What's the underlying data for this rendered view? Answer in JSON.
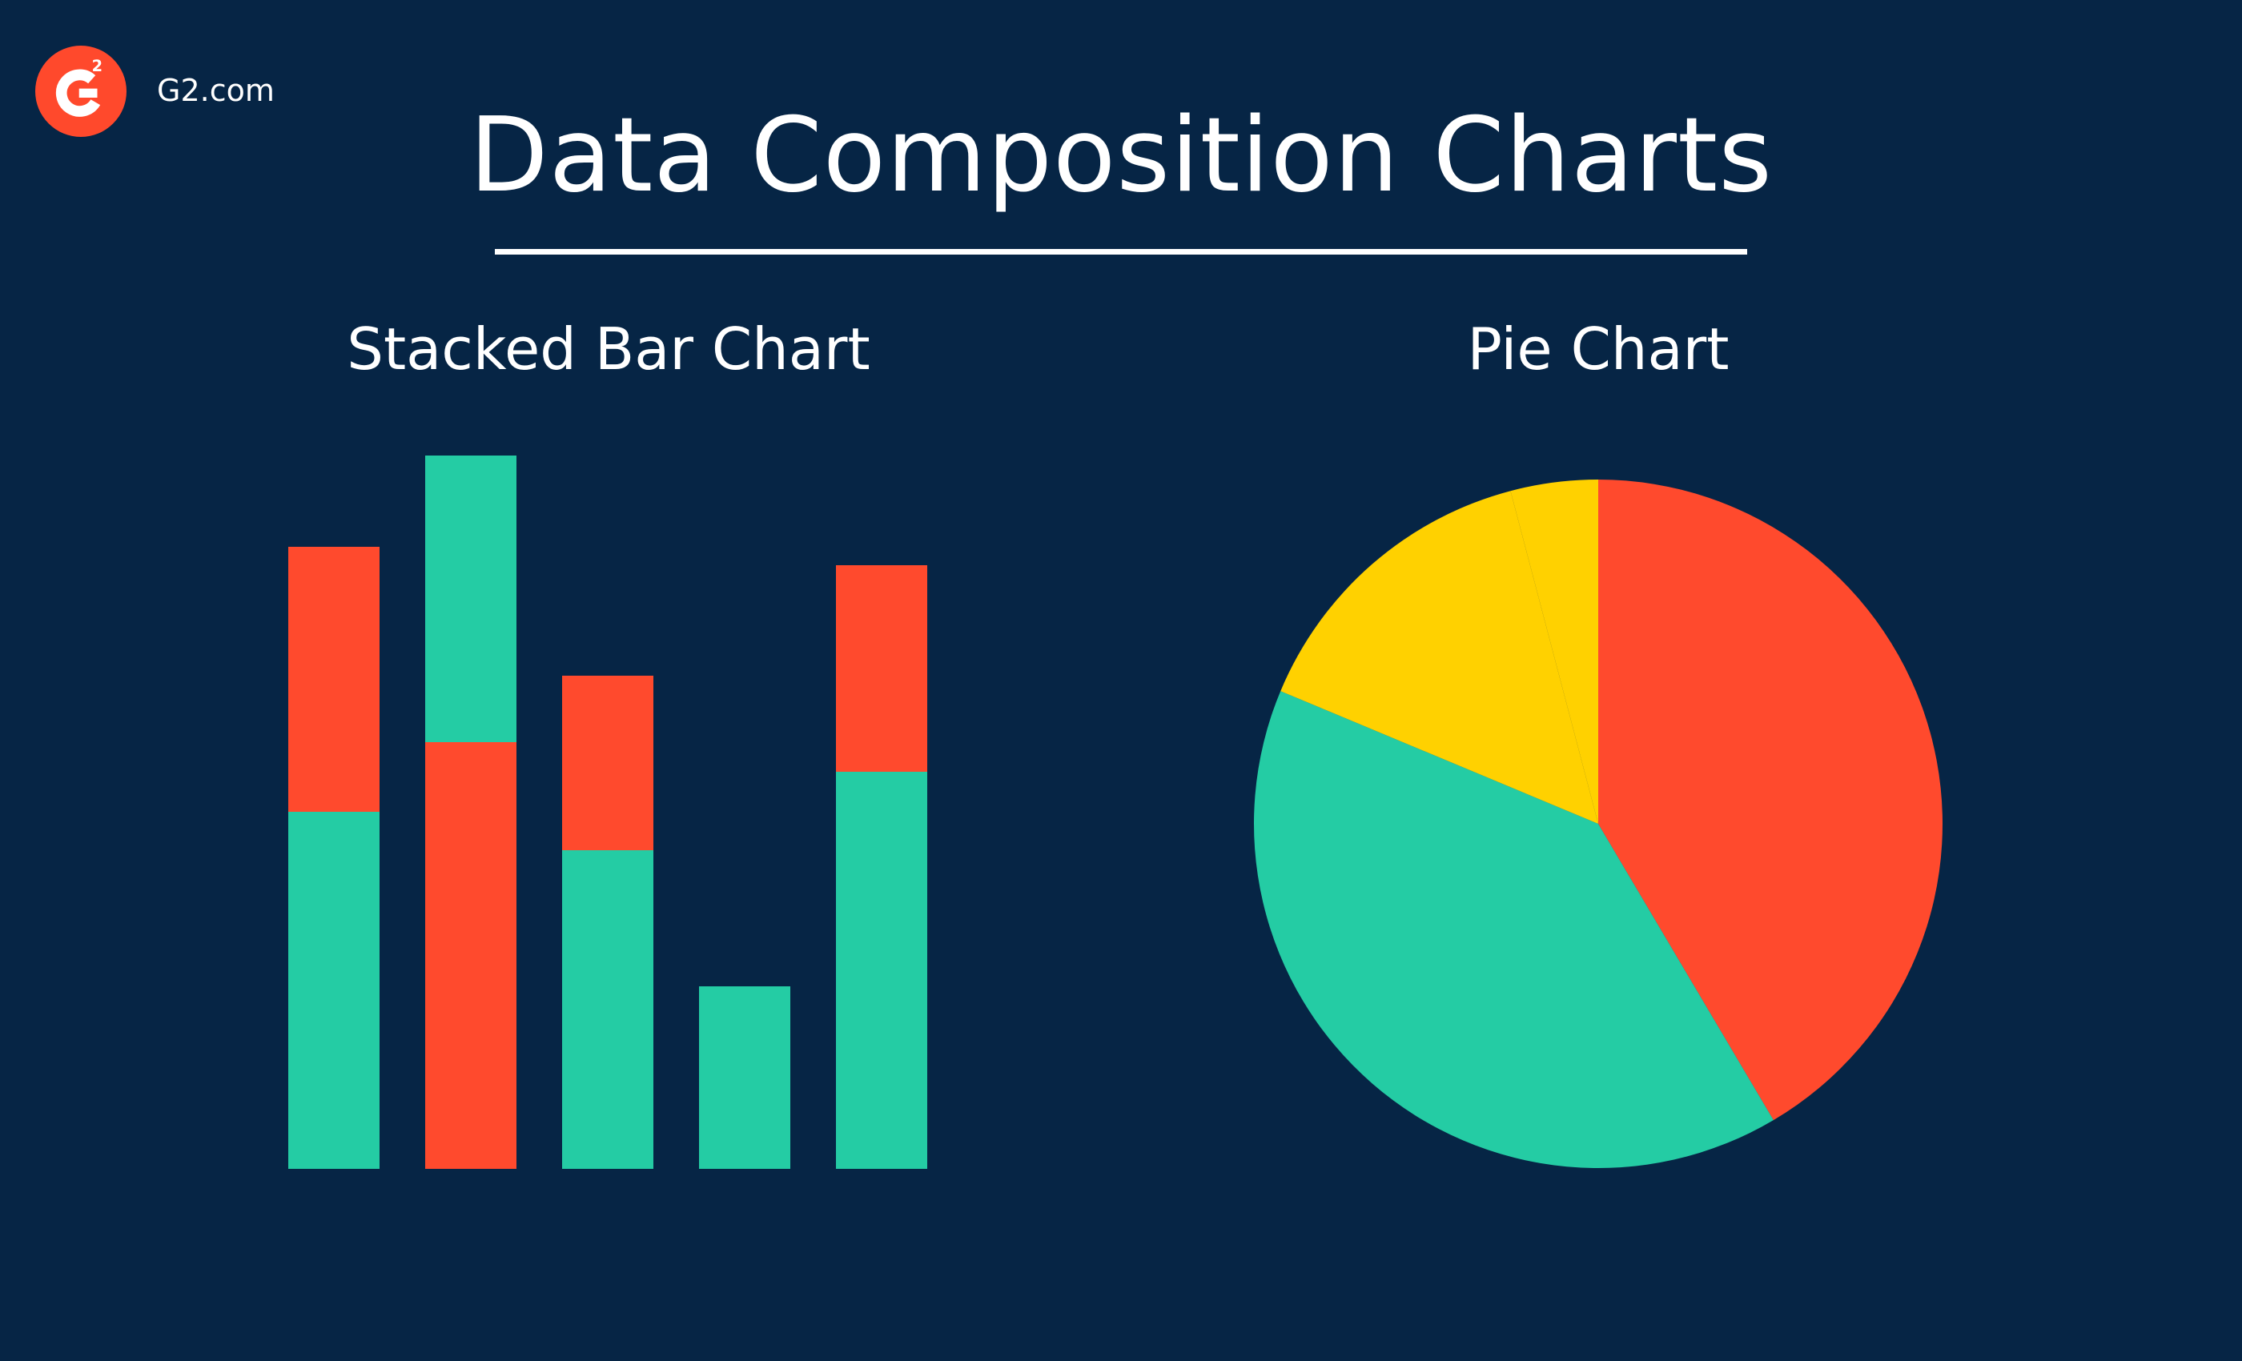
{
  "brand": {
    "logo_text": "G2",
    "site": "G2.com"
  },
  "title": "Data Composition Charts",
  "colors": {
    "background": "#062545",
    "teal": "#24cca4",
    "red": "#ff4a2d",
    "yellow": "#ffd100",
    "white": "#ffffff"
  },
  "chart_data": [
    {
      "type": "bar",
      "stacked": true,
      "title": "Stacked Bar Chart",
      "categories": [
        "",
        "",
        "",
        "",
        ""
      ],
      "ylim": [
        0,
        890
      ],
      "series": [
        {
          "color": "#24cca4",
          "values": [
            446,
            0,
            398,
            228,
            496
          ]
        },
        {
          "color": "#ff4a2d",
          "values": [
            331,
            533,
            218,
            0,
            258
          ]
        },
        {
          "color": "#24cca4",
          "values": [
            0,
            358,
            0,
            0,
            0
          ]
        }
      ],
      "grid": false
    },
    {
      "type": "pie",
      "title": "Pie Chart",
      "slices": [
        {
          "color": "#ff4a2d",
          "value": 41.5
        },
        {
          "color": "#24cca4",
          "value": 39.8
        },
        {
          "color": "#ffd100",
          "value": 14.6
        },
        {
          "color": "#ffd100",
          "value": 4.1
        }
      ]
    }
  ]
}
